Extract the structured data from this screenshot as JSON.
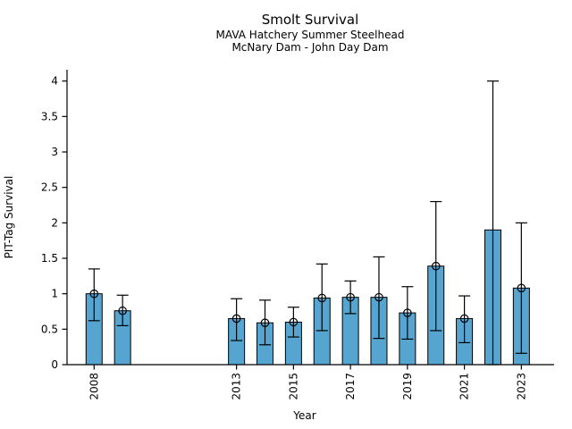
{
  "chart_data": {
    "type": "bar",
    "title": "Smolt Survival",
    "subtitle_line1": "MAVA Hatchery Summer Steelhead",
    "subtitle_line2": "McNary Dam - John Day Dam",
    "xlabel": "Year",
    "ylabel": "PIT-Tag Survival",
    "x": [
      2008,
      2009,
      2013,
      2014,
      2015,
      2016,
      2017,
      2018,
      2019,
      2020,
      2021,
      2022,
      2023
    ],
    "values": [
      1.0,
      0.76,
      0.65,
      0.59,
      0.6,
      0.94,
      0.95,
      0.95,
      0.73,
      1.39,
      0.65,
      1.9,
      1.08
    ],
    "err_low": [
      0.62,
      0.55,
      0.34,
      0.28,
      0.39,
      0.48,
      0.72,
      0.37,
      0.36,
      0.48,
      0.31,
      0.0,
      0.16
    ],
    "err_high": [
      1.35,
      0.98,
      0.93,
      0.91,
      0.81,
      1.42,
      1.18,
      1.52,
      1.1,
      2.3,
      0.97,
      4.0,
      2.0
    ],
    "point_marker": [
      true,
      true,
      true,
      true,
      true,
      true,
      true,
      true,
      true,
      true,
      true,
      false,
      true
    ],
    "xticks": [
      2008,
      2013,
      2015,
      2017,
      2019,
      2021,
      2023
    ],
    "yticks": [
      0,
      0.5,
      1,
      1.5,
      2,
      2.5,
      3,
      3.5,
      4
    ],
    "ytick_labels": [
      "0",
      "0.5",
      "1",
      "1.5",
      "2",
      "2.5",
      "3",
      "3.5",
      "4"
    ],
    "xlim": [
      2007.05,
      2024.15
    ],
    "ylim": [
      0,
      4.16
    ],
    "grid": false,
    "legend_position": "none",
    "bar_color": "#56a5d0",
    "bar_edge_color": "#000000",
    "error_color": "#000000",
    "text_color": "#000000"
  }
}
